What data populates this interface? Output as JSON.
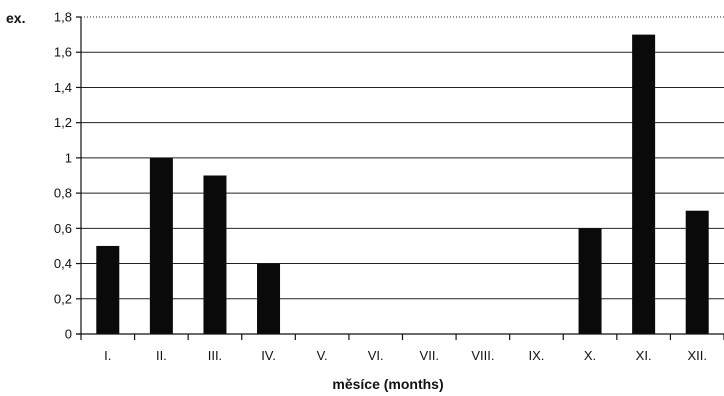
{
  "chart_data": {
    "type": "bar",
    "ylabel": "ex.",
    "xlabel": "měsíce (months)",
    "categories": [
      "I.",
      "II.",
      "III.",
      "IV.",
      "V.",
      "VI.",
      "VII.",
      "VIII.",
      "IX.",
      "X.",
      "XI.",
      "XII."
    ],
    "values": [
      0.5,
      1.0,
      0.9,
      0.4,
      0,
      0,
      0,
      0,
      0,
      0.6,
      1.7,
      0.7
    ],
    "ylim": [
      0,
      1.8
    ],
    "yticks": [
      "0",
      "0,2",
      "0,4",
      "0,6",
      "0,8",
      "1",
      "1,2",
      "1,4",
      "1,6",
      "1,8"
    ],
    "grid": true,
    "colors": {
      "bar": "#0a0a0a",
      "grid": "#222222"
    }
  }
}
